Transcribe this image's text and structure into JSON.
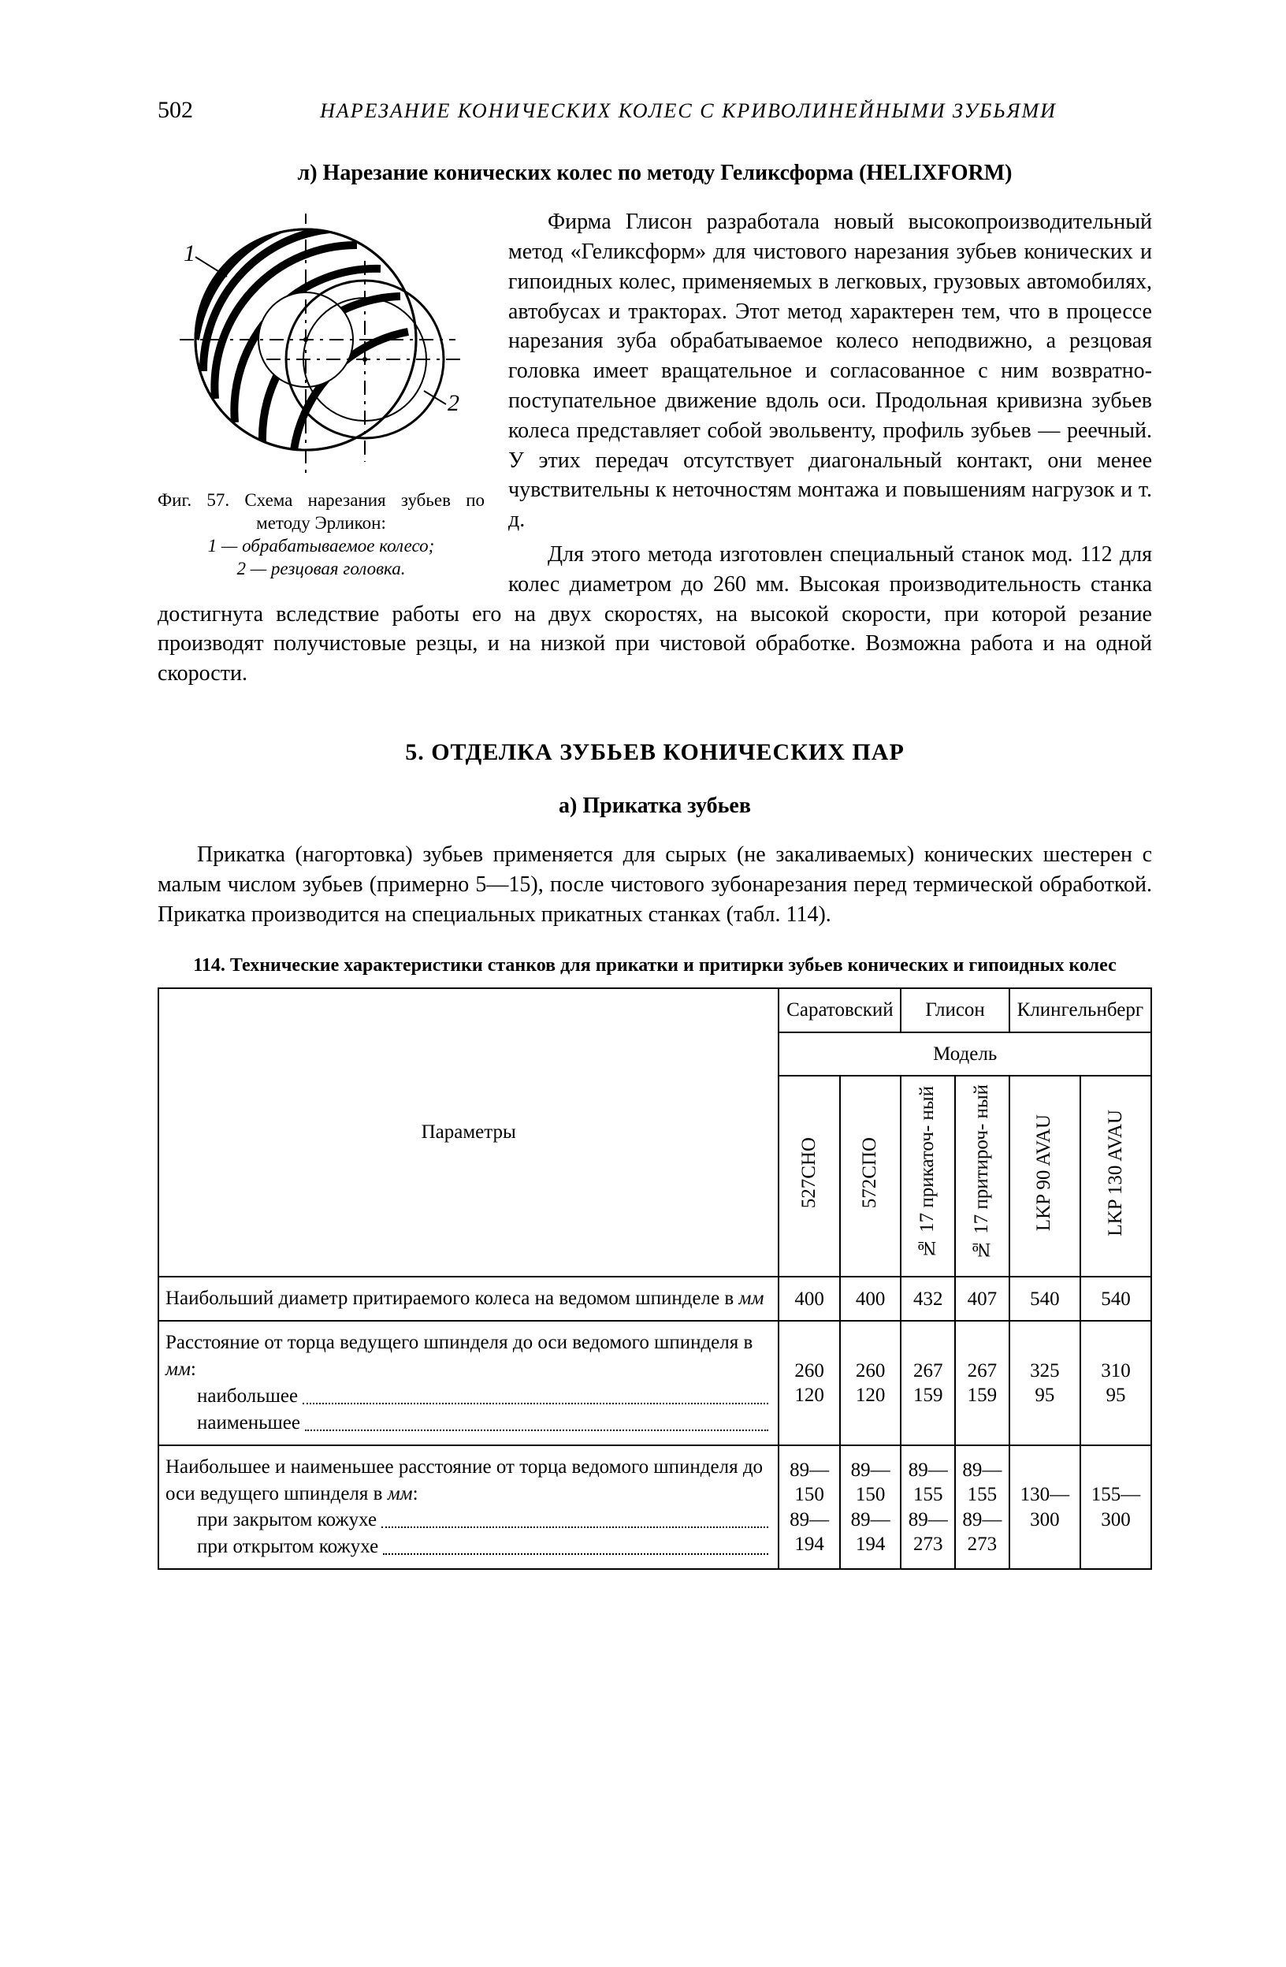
{
  "page_number": "502",
  "running_title": "НАРЕЗАНИЕ КОНИЧЕСКИХ КОЛЕС С КРИВОЛИНЕЙНЫМИ ЗУБЬЯМИ",
  "section_l_title": "л) Нарезание конических колес по методу Геликсформа (HELIXFORM)",
  "para1": "Фирма Глисон разработала новый высокопроизводительный метод «Геликсформ» для чистового нарезания зубьев конических и гипоидных колес, применяемых в легковых, грузовых автомобилях, автобусах и тракторах. Этот метод характерен тем, что в процессе нарезания зуба обрабатываемое колесо неподвижно, а резцовая головка имеет вращательное и согласованное с ним возвратно-поступательное движение вдоль оси. Продольная кривизна зубьев колеса представляет собой эвольвенту, профиль зубьев — реечный. У этих передач отсутствует диагональный контакт, они менее чувствительны к неточностям монтажа и повышениям нагрузок и т. д.",
  "para2": "Для этого метода изготовлен специальный станок мод. 112 для колес диаметром до 260 мм. Высокая производительность станка достигнута вследствие работы его на двух скоростях, на высокой скорости, при которой резание производят получистовые резцы, и на низкой при чистовой обработке. Возможна работа и на одной скорости.",
  "fig57": {
    "label_1": "1",
    "label_2": "2",
    "caption_line1": "Фиг. 57. Схема нарезания зубьев по методу Эрликон:",
    "caption_line2": "1 — обрабатываемое колесо;",
    "caption_line3": "2 — резцовая головка."
  },
  "section_5_title": "5. ОТДЕЛКА ЗУБЬЕВ КОНИЧЕСКИХ ПАР",
  "section_a_title": "а) Прикатка зубьев",
  "para3": "Прикатка (нагортовка) зубьев применяется для сырых (не закаливаемых) конических шестерен с малым числом зубьев (примерно 5—15), после чистового зубонарезания перед термической обработкой. Прикатка производится на специальных прикатных станках (табл. 114).",
  "table114": {
    "title": "114. Технические характеристики станков для прикатки и притирки зубьев конических и гипоидных колес",
    "group_saratov": "Саратовский",
    "group_gleason": "Глисон",
    "group_klingelnberg": "Клингельнберг",
    "model_label": "Модель",
    "params_label": "Параметры",
    "models": {
      "m1": "527СНО",
      "m2": "572СПО",
      "m3": "№ 17\nприкаточ-\nный",
      "m4": "№ 17\nпритироч-\nный",
      "m5": "LKP 90\nAVAU",
      "m6": "LKP 130\nAVAU"
    },
    "rows": [
      {
        "param_html": "Наибольший диаметр притираемого колеса на ведомом шпинделе в <span class=\"i\">мм</span>",
        "dot_lines": [
          "Наибольший диаметр притираемого колеса на ведомом шпинделе в мм"
        ],
        "vals": [
          "400",
          "400",
          "432",
          "407",
          "540",
          "540"
        ]
      },
      {
        "param_html": "Расстояние от торца ведущего шпинделя до оси ведомого шпинделя в <span class=\"i\">мм</span>:",
        "sub": [
          "наибольшее",
          "наименьшее"
        ],
        "vals": [
          "260\n120",
          "260\n120",
          "267\n159",
          "267\n159",
          "325\n95",
          "310\n95"
        ]
      },
      {
        "param_html": "Наибольшее и наименьшее расстояние от торца ведомого шпинделя до оси ведущего шпинделя в <span class=\"i\">мм</span>:",
        "sub": [
          "при закрытом кожухе",
          "при открытом кожухе"
        ],
        "vals": [
          "89—\n150\n89—\n194",
          "89—\n150\n89—\n194",
          "89—\n155\n89—\n273",
          "89—\n155\n89—\n273",
          "130—\n300",
          "155—\n300"
        ]
      }
    ]
  }
}
